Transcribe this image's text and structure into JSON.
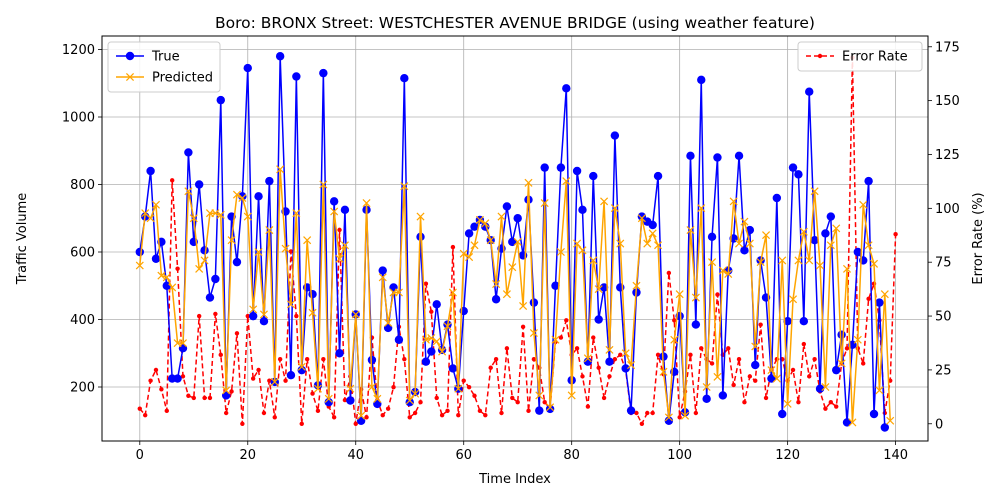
{
  "chart_data": {
    "type": "line",
    "title": "Boro: BRONX Street: WESTCHESTER AVENUE BRIDGE (using weather feature)",
    "xlabel": "Time Index",
    "ylabel": "Traffic Volume",
    "y2label": "Error Rate (%)",
    "xlim": [
      -7,
      146
    ],
    "ylim": [
      40,
      1240
    ],
    "y2lim": [
      -8,
      180
    ],
    "xticks": [
      0,
      20,
      40,
      60,
      80,
      100,
      120,
      140
    ],
    "yticks": [
      200,
      400,
      600,
      800,
      1000,
      1200
    ],
    "y2ticks": [
      0,
      25,
      50,
      75,
      100,
      125,
      150,
      175
    ],
    "grid": true,
    "legend_left_position": "upper-left",
    "legend_right_position": "upper-right",
    "series": [
      {
        "name": "True",
        "axis": "left",
        "color": "#0000ff",
        "marker": "circle",
        "values": [
          600,
          705,
          840,
          580,
          630,
          500,
          225,
          225,
          315,
          895,
          630,
          800,
          605,
          465,
          520,
          1050,
          175,
          705,
          570,
          765,
          1145,
          410,
          765,
          395,
          810,
          215,
          1180,
          720,
          235,
          1120,
          250,
          495,
          475,
          205,
          1130,
          155,
          750,
          300,
          725,
          160,
          415,
          100,
          725,
          280,
          150,
          545,
          375,
          495,
          340,
          1115,
          155,
          185,
          645,
          275,
          305,
          445,
          310,
          385,
          255,
          195,
          425,
          655,
          675,
          695,
          675,
          635,
          460,
          610,
          735,
          630,
          700,
          590,
          755,
          450,
          130,
          850,
          135,
          500,
          850,
          1085,
          220,
          840,
          725,
          275,
          825,
          400,
          495,
          275,
          945,
          495,
          255,
          130,
          480,
          705,
          690,
          680,
          825,
          290,
          100,
          245,
          410,
          125,
          885,
          385,
          1110,
          165,
          645,
          880,
          175,
          545,
          640,
          885,
          605,
          665,
          265,
          575,
          465,
          225,
          760,
          120,
          395,
          850,
          830,
          395,
          1075,
          635,
          195,
          655,
          705,
          250,
          355,
          95,
          325,
          600,
          575,
          810,
          120,
          450,
          80
        ]
      },
      {
        "name": "Predicted",
        "axis": "left",
        "color": "#ffa500",
        "marker": "x",
        "values": [
          560,
          715,
          700,
          740,
          530,
          525,
          495,
          330,
          330,
          780,
          700,
          550,
          575,
          715,
          715,
          710,
          190,
          635,
          770,
          760,
          705,
          430,
          600,
          415,
          665,
          215,
          845,
          610,
          445,
          715,
          260,
          635,
          420,
          195,
          800,
          165,
          720,
          580,
          620,
          195,
          415,
          115,
          745,
          200,
          165,
          525,
          390,
          480,
          480,
          795,
          160,
          180,
          705,
          340,
          345,
          335,
          305,
          380,
          480,
          195,
          595,
          585,
          620,
          695,
          685,
          635,
          505,
          705,
          475,
          555,
          630,
          440,
          805,
          360,
          175,
          745,
          140,
          340,
          600,
          810,
          175,
          625,
          605,
          285,
          575,
          490,
          750,
          310,
          730,
          625,
          300,
          265,
          500,
          700,
          625,
          655,
          620,
          245,
          110,
          340,
          475,
          115,
          665,
          465,
          730,
          200,
          570,
          230,
          545,
          535,
          750,
          625,
          690,
          625,
          320,
          570,
          650,
          250,
          225,
          575,
          150,
          460,
          575,
          660,
          575,
          780,
          560,
          200,
          620,
          670,
          270,
          550,
          95,
          340,
          740,
          620,
          565,
          190,
          475,
          100
        ]
      },
      {
        "name": "Error Rate",
        "axis": "right",
        "color": "#ff0000",
        "marker": "dot",
        "values": [
          7,
          4,
          20,
          25,
          16,
          6,
          113,
          72,
          22,
          13,
          12,
          50,
          12,
          12,
          51,
          32,
          5,
          15,
          42,
          0,
          50,
          21,
          25,
          5,
          20,
          3,
          30,
          20,
          80,
          50,
          0,
          30,
          14,
          6,
          30,
          8,
          3,
          90,
          11,
          22,
          0,
          16,
          3,
          40,
          11,
          4,
          7,
          17,
          45,
          30,
          3,
          5,
          10,
          65,
          52,
          12,
          4,
          6,
          82,
          4,
          20,
          17,
          13,
          6,
          4,
          26,
          30,
          5,
          35,
          12,
          10,
          45,
          6,
          30,
          26,
          10,
          7,
          38,
          40,
          48,
          32,
          35,
          22,
          8,
          40,
          26,
          12,
          22,
          30,
          32,
          25,
          5,
          5,
          0,
          5,
          5,
          32,
          23,
          70,
          48,
          3,
          15,
          32,
          5,
          35,
          30,
          28,
          60,
          32,
          35,
          18,
          30,
          10,
          22,
          20,
          46,
          12,
          25,
          30,
          30,
          20,
          25,
          10,
          37,
          22,
          30,
          15,
          7,
          10,
          8,
          28,
          35,
          170,
          35,
          28,
          58,
          65,
          48,
          5,
          20,
          88
        ]
      }
    ]
  }
}
